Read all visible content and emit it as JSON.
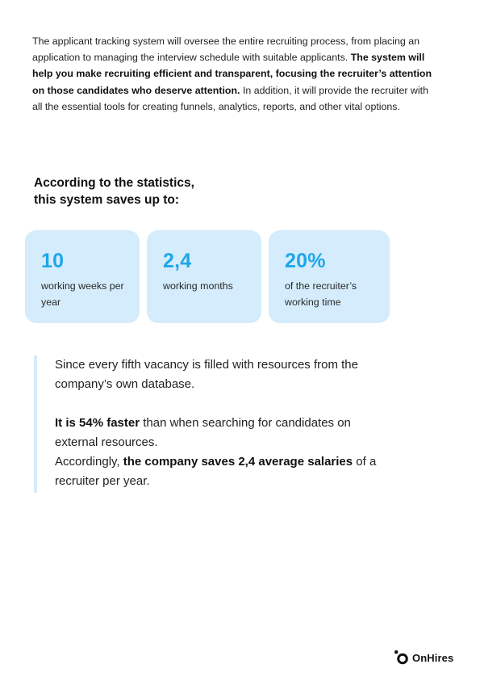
{
  "intro": {
    "part1": "The applicant tracking system will oversee the entire recruiting process, from placing an application to managing the interview schedule with suitable applicants. ",
    "bold": "The system will help you make recruiting efficient and transparent, focusing the recruiter’s attention on those candidates who deserve attention.",
    "part2": " In addition, it will provide the recruiter with all the essential tools for creating funnels, analytics, reports, and other vital options."
  },
  "stats": {
    "heading_line1": "According to the statistics,",
    "heading_line2": "this system saves up to:",
    "cards": [
      {
        "value": "10",
        "caption": "working weeks per year"
      },
      {
        "value": "2,4",
        "caption": "working months"
      },
      {
        "value": "20%",
        "caption": "of the recruiter’s working time"
      }
    ]
  },
  "quote": {
    "p1": "Since every fifth vacancy is filled with resources from the company’s own database.",
    "p2_bold": "It is 54% faster",
    "p2_rest": " than when searching for candidates on external resources.",
    "p3_lead": "Accordingly, ",
    "p3_bold": "the company saves 2,4 average salaries",
    "p3_rest": " of a recruiter per year."
  },
  "brand": {
    "name": "OnHires",
    "accent_color": "#1fa6ea",
    "card_color": "#d4ecfb"
  }
}
